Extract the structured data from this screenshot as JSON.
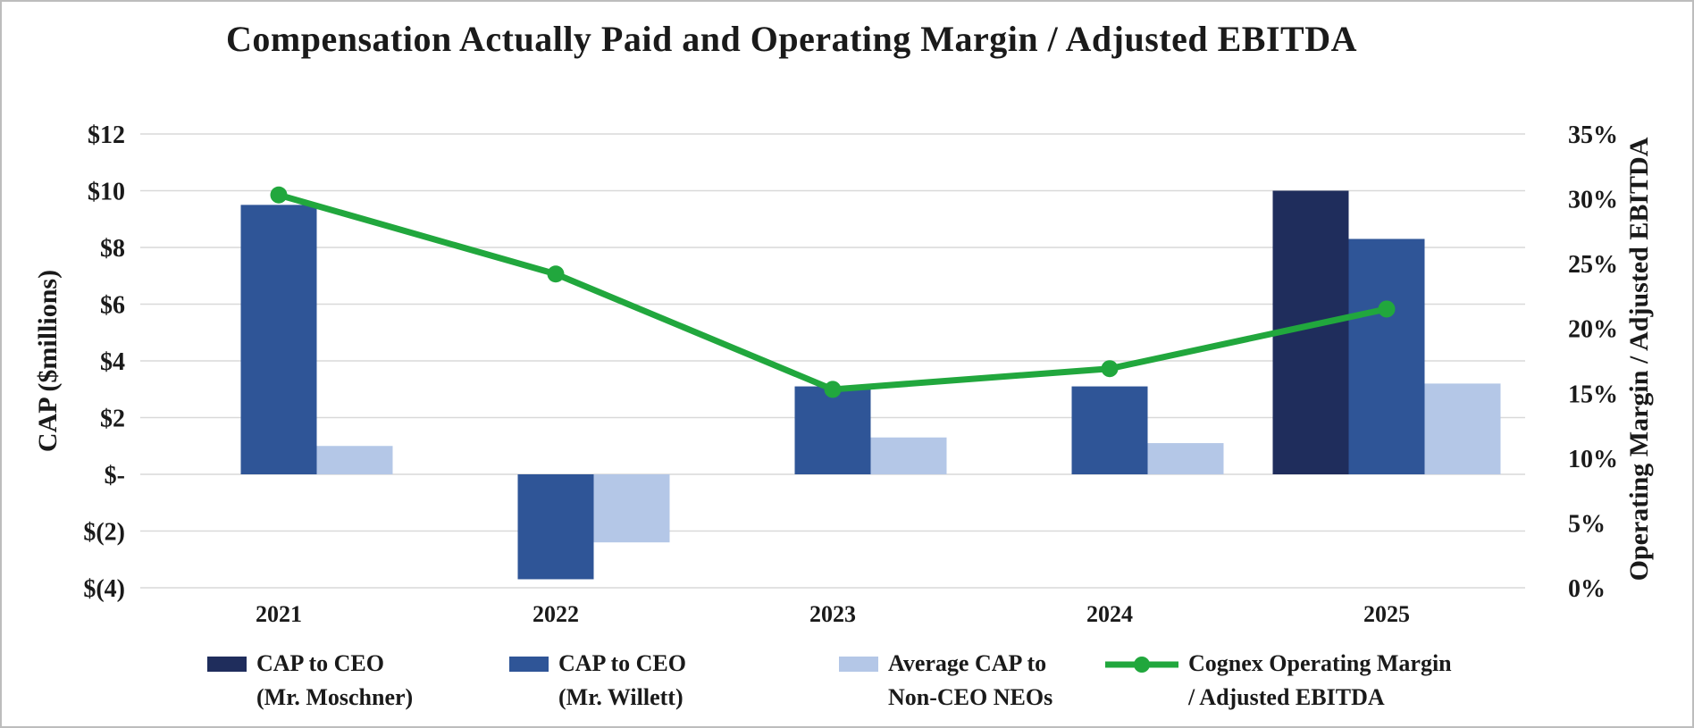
{
  "chart": {
    "title": "Compensation Actually Paid and Operating Margin / Adjusted EBITDA",
    "left_axis_title": "CAP ($millions)",
    "right_axis_title": "Operating Margin / Adjusted EBITDA"
  },
  "chart_data": {
    "type": "combo-bar-line",
    "title": "Compensation Actually Paid and Operating Margin / Adjusted EBITDA",
    "categories": [
      "2021",
      "2022",
      "2023",
      "2024",
      "2025"
    ],
    "bar_unit": "$ millions",
    "line_unit": "percent",
    "grid": true,
    "legend_position": "bottom",
    "bar_series": [
      {
        "key": "moschner",
        "name": "CAP to CEO (Mr. Moschner)",
        "color": "#1F2D5C",
        "values": [
          null,
          null,
          null,
          null,
          10.0
        ]
      },
      {
        "key": "willett",
        "name": "CAP to CEO (Mr. Willett)",
        "color": "#2F5597",
        "values": [
          9.5,
          -3.7,
          3.1,
          3.1,
          8.3
        ]
      },
      {
        "key": "neo",
        "name": "Average CAP to Non-CEO NEOs",
        "color": "#B4C7E7",
        "values": [
          1.0,
          -2.4,
          1.3,
          1.1,
          3.2
        ]
      }
    ],
    "line_series": {
      "key": "opmargin",
      "name": "Cognex Operating Margin / Adjusted EBITDA",
      "color": "#21A73D",
      "values": [
        30.3,
        24.2,
        15.3,
        16.9,
        21.5
      ]
    },
    "y1_axis": {
      "label": "CAP ($millions)",
      "min": -4,
      "max": 12,
      "ticks": [
        {
          "label": "$12",
          "value": 12
        },
        {
          "label": "$10",
          "value": 10
        },
        {
          "label": "$8",
          "value": 8
        },
        {
          "label": "$6",
          "value": 6
        },
        {
          "label": "$4",
          "value": 4
        },
        {
          "label": "$2",
          "value": 2
        },
        {
          "label": "$-",
          "value": 0
        },
        {
          "label": "$(2)",
          "value": -2
        },
        {
          "label": "$(4)",
          "value": -4
        }
      ]
    },
    "y2_axis": {
      "label": "Operating Margin / Adjusted EBITDA",
      "min": 0,
      "max": 35,
      "ticks": [
        {
          "label": "35%",
          "value": 35
        },
        {
          "label": "30%",
          "value": 30
        },
        {
          "label": "25%",
          "value": 25
        },
        {
          "label": "20%",
          "value": 20
        },
        {
          "label": "15%",
          "value": 15
        },
        {
          "label": "10%",
          "value": 10
        },
        {
          "label": "5%",
          "value": 5
        },
        {
          "label": "0%",
          "value": 0
        }
      ]
    }
  },
  "legend": {
    "items": [
      {
        "line1": "CAP to CEO",
        "line2": "(Mr. Moschner)"
      },
      {
        "line1": "CAP to CEO",
        "line2": "(Mr. Willett)"
      },
      {
        "line1": "Average CAP to",
        "line2": "Non-CEO NEOs"
      },
      {
        "line1": "Cognex Operating Margin",
        "line2": "/ Adjusted EBITDA"
      }
    ]
  }
}
